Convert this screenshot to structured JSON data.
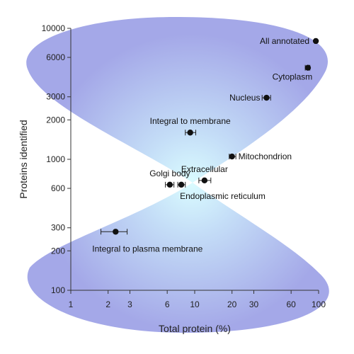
{
  "chart_data": {
    "type": "scatter",
    "xlabel": "Total protein (%)",
    "ylabel": "Proteins identified",
    "x_scale": "log",
    "y_scale": "log",
    "xlim": [
      1,
      100
    ],
    "ylim": [
      100,
      10000
    ],
    "x_ticks": [
      1,
      2,
      3,
      6,
      10,
      20,
      30,
      60,
      100
    ],
    "y_ticks": [
      100,
      200,
      300,
      600,
      1000,
      2000,
      3000,
      6000,
      10000
    ],
    "grid": false,
    "legend": "none",
    "background": "hourglass-shaped blue gradient",
    "colors": {
      "marker": "#111111",
      "hourglass_edge": "#a4a8e8",
      "hourglass_center": "#dafcff"
    },
    "points": [
      {
        "label": "All annotated",
        "x": 95,
        "y": 8000,
        "xerr": [
          93,
          97
        ],
        "label_pos": "left"
      },
      {
        "label": "Cytoplasm",
        "x": 82,
        "y": 5000,
        "xerr": [
          78,
          85
        ],
        "label_pos": "below-left"
      },
      {
        "label": "Nucleus",
        "x": 38,
        "y": 2950,
        "xerr": [
          35,
          41
        ],
        "label_pos": "left"
      },
      {
        "label": "Integral to membrane",
        "x": 9.2,
        "y": 1600,
        "xerr": [
          8.4,
          10.2
        ],
        "label_pos": "above"
      },
      {
        "label": "Mitochondrion",
        "x": 20,
        "y": 1050,
        "xerr": [
          19,
          21.5
        ],
        "label_pos": "right"
      },
      {
        "label": "Extracellular",
        "x": 12,
        "y": 690,
        "xerr": [
          10.8,
          13.5
        ],
        "label_pos": "above"
      },
      {
        "label": "Endoplasmic reticulum",
        "x": 7.8,
        "y": 640,
        "xerr": [
          7.3,
          8.4
        ],
        "label_pos": "below-right"
      },
      {
        "label": "Golgi body",
        "x": 6.3,
        "y": 640,
        "xerr": [
          5.8,
          6.8
        ],
        "label_pos": "above"
      },
      {
        "label": "Integral to plasma membrane",
        "x": 2.3,
        "y": 280,
        "xerr": [
          1.75,
          2.85
        ],
        "label_pos": "below"
      }
    ]
  }
}
